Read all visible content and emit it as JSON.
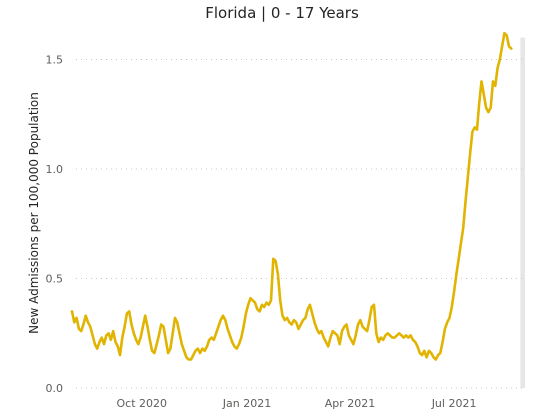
{
  "chart_data": {
    "type": "line",
    "title": "Florida | 0 - 17 Years",
    "xlabel": "",
    "ylabel": "New Admissions per 100,000 Population",
    "x_range": [
      "2020-08-01",
      "2021-09-01"
    ],
    "ylim": [
      0,
      1.6
    ],
    "y_ticks": [
      {
        "value": 0.0,
        "label": "0.0"
      },
      {
        "value": 0.5,
        "label": "0.5"
      },
      {
        "value": 1.0,
        "label": "1.0"
      },
      {
        "value": 1.5,
        "label": "1.5"
      }
    ],
    "x_ticks": [
      {
        "date": "2020-10-01",
        "label": "Oct 2020"
      },
      {
        "date": "2021-01-01",
        "label": "Jan 2021"
      },
      {
        "date": "2021-04-01",
        "label": "Apr 2021"
      },
      {
        "date": "2021-07-01",
        "label": "Jul 2021"
      }
    ],
    "grid": true,
    "line_color": "#e0b400",
    "shaded_period": {
      "start": "2021-08-28",
      "end": "2021-09-01",
      "color": "#e6e6e6"
    },
    "series": [
      {
        "points": [
          [
            "2020-08-01",
            0.35
          ],
          [
            "2020-08-03",
            0.3
          ],
          [
            "2020-08-05",
            0.32
          ],
          [
            "2020-08-07",
            0.27
          ],
          [
            "2020-08-09",
            0.26
          ],
          [
            "2020-08-11",
            0.29
          ],
          [
            "2020-08-13",
            0.33
          ],
          [
            "2020-08-15",
            0.3
          ],
          [
            "2020-08-17",
            0.28
          ],
          [
            "2020-08-19",
            0.24
          ],
          [
            "2020-08-21",
            0.2
          ],
          [
            "2020-08-23",
            0.18
          ],
          [
            "2020-08-25",
            0.21
          ],
          [
            "2020-08-27",
            0.23
          ],
          [
            "2020-08-29",
            0.2
          ],
          [
            "2020-08-31",
            0.24
          ],
          [
            "2020-09-02",
            0.25
          ],
          [
            "2020-09-04",
            0.22
          ],
          [
            "2020-09-06",
            0.26
          ],
          [
            "2020-09-08",
            0.21
          ],
          [
            "2020-09-10",
            0.19
          ],
          [
            "2020-09-12",
            0.15
          ],
          [
            "2020-09-14",
            0.23
          ],
          [
            "2020-09-16",
            0.28
          ],
          [
            "2020-09-18",
            0.34
          ],
          [
            "2020-09-20",
            0.35
          ],
          [
            "2020-09-22",
            0.29
          ],
          [
            "2020-09-24",
            0.25
          ],
          [
            "2020-09-26",
            0.22
          ],
          [
            "2020-09-28",
            0.2
          ],
          [
            "2020-09-30",
            0.23
          ],
          [
            "2020-10-02",
            0.28
          ],
          [
            "2020-10-04",
            0.33
          ],
          [
            "2020-10-06",
            0.28
          ],
          [
            "2020-10-08",
            0.22
          ],
          [
            "2020-10-10",
            0.17
          ],
          [
            "2020-10-12",
            0.16
          ],
          [
            "2020-10-14",
            0.2
          ],
          [
            "2020-10-16",
            0.24
          ],
          [
            "2020-10-18",
            0.29
          ],
          [
            "2020-10-20",
            0.28
          ],
          [
            "2020-10-22",
            0.22
          ],
          [
            "2020-10-24",
            0.16
          ],
          [
            "2020-10-26",
            0.18
          ],
          [
            "2020-10-28",
            0.25
          ],
          [
            "2020-10-30",
            0.32
          ],
          [
            "2020-11-01",
            0.3
          ],
          [
            "2020-11-03",
            0.25
          ],
          [
            "2020-11-05",
            0.2
          ],
          [
            "2020-11-07",
            0.17
          ],
          [
            "2020-11-09",
            0.14
          ],
          [
            "2020-11-11",
            0.13
          ],
          [
            "2020-11-13",
            0.13
          ],
          [
            "2020-11-15",
            0.15
          ],
          [
            "2020-11-17",
            0.17
          ],
          [
            "2020-11-19",
            0.18
          ],
          [
            "2020-11-21",
            0.16
          ],
          [
            "2020-11-23",
            0.18
          ],
          [
            "2020-11-25",
            0.17
          ],
          [
            "2020-11-27",
            0.19
          ],
          [
            "2020-11-29",
            0.22
          ],
          [
            "2020-12-01",
            0.23
          ],
          [
            "2020-12-03",
            0.22
          ],
          [
            "2020-12-05",
            0.25
          ],
          [
            "2020-12-07",
            0.28
          ],
          [
            "2020-12-09",
            0.31
          ],
          [
            "2020-12-11",
            0.33
          ],
          [
            "2020-12-13",
            0.31
          ],
          [
            "2020-12-15",
            0.27
          ],
          [
            "2020-12-17",
            0.24
          ],
          [
            "2020-12-19",
            0.21
          ],
          [
            "2020-12-21",
            0.19
          ],
          [
            "2020-12-23",
            0.18
          ],
          [
            "2020-12-25",
            0.2
          ],
          [
            "2020-12-27",
            0.23
          ],
          [
            "2020-12-29",
            0.28
          ],
          [
            "2020-12-31",
            0.34
          ],
          [
            "2021-01-02",
            0.38
          ],
          [
            "2021-01-04",
            0.41
          ],
          [
            "2021-01-06",
            0.4
          ],
          [
            "2021-01-08",
            0.39
          ],
          [
            "2021-01-10",
            0.36
          ],
          [
            "2021-01-12",
            0.35
          ],
          [
            "2021-01-14",
            0.38
          ],
          [
            "2021-01-16",
            0.37
          ],
          [
            "2021-01-18",
            0.39
          ],
          [
            "2021-01-20",
            0.38
          ],
          [
            "2021-01-22",
            0.4
          ],
          [
            "2021-01-24",
            0.59
          ],
          [
            "2021-01-26",
            0.58
          ],
          [
            "2021-01-28",
            0.52
          ],
          [
            "2021-01-30",
            0.4
          ],
          [
            "2021-02-01",
            0.33
          ],
          [
            "2021-02-03",
            0.31
          ],
          [
            "2021-02-05",
            0.32
          ],
          [
            "2021-02-07",
            0.3
          ],
          [
            "2021-02-09",
            0.29
          ],
          [
            "2021-02-11",
            0.31
          ],
          [
            "2021-02-13",
            0.3
          ],
          [
            "2021-02-15",
            0.27
          ],
          [
            "2021-02-17",
            0.29
          ],
          [
            "2021-02-19",
            0.31
          ],
          [
            "2021-02-21",
            0.32
          ],
          [
            "2021-02-23",
            0.36
          ],
          [
            "2021-02-25",
            0.38
          ],
          [
            "2021-02-27",
            0.34
          ],
          [
            "2021-03-01",
            0.3
          ],
          [
            "2021-03-03",
            0.27
          ],
          [
            "2021-03-05",
            0.25
          ],
          [
            "2021-03-07",
            0.26
          ],
          [
            "2021-03-09",
            0.23
          ],
          [
            "2021-03-11",
            0.21
          ],
          [
            "2021-03-13",
            0.19
          ],
          [
            "2021-03-15",
            0.23
          ],
          [
            "2021-03-17",
            0.26
          ],
          [
            "2021-03-19",
            0.25
          ],
          [
            "2021-03-21",
            0.24
          ],
          [
            "2021-03-23",
            0.2
          ],
          [
            "2021-03-25",
            0.26
          ],
          [
            "2021-03-27",
            0.28
          ],
          [
            "2021-03-29",
            0.29
          ],
          [
            "2021-03-31",
            0.24
          ],
          [
            "2021-04-02",
            0.22
          ],
          [
            "2021-04-04",
            0.2
          ],
          [
            "2021-04-06",
            0.24
          ],
          [
            "2021-04-08",
            0.29
          ],
          [
            "2021-04-10",
            0.31
          ],
          [
            "2021-04-12",
            0.28
          ],
          [
            "2021-04-14",
            0.27
          ],
          [
            "2021-04-16",
            0.26
          ],
          [
            "2021-04-18",
            0.31
          ],
          [
            "2021-04-20",
            0.37
          ],
          [
            "2021-04-22",
            0.38
          ],
          [
            "2021-04-24",
            0.25
          ],
          [
            "2021-04-26",
            0.21
          ],
          [
            "2021-04-28",
            0.23
          ],
          [
            "2021-04-30",
            0.22
          ],
          [
            "2021-05-02",
            0.24
          ],
          [
            "2021-05-04",
            0.25
          ],
          [
            "2021-05-06",
            0.24
          ],
          [
            "2021-05-08",
            0.23
          ],
          [
            "2021-05-10",
            0.23
          ],
          [
            "2021-05-12",
            0.24
          ],
          [
            "2021-05-14",
            0.25
          ],
          [
            "2021-05-16",
            0.24
          ],
          [
            "2021-05-18",
            0.23
          ],
          [
            "2021-05-20",
            0.24
          ],
          [
            "2021-05-22",
            0.23
          ],
          [
            "2021-05-24",
            0.24
          ],
          [
            "2021-05-26",
            0.22
          ],
          [
            "2021-05-28",
            0.21
          ],
          [
            "2021-05-30",
            0.19
          ],
          [
            "2021-06-01",
            0.16
          ],
          [
            "2021-06-03",
            0.15
          ],
          [
            "2021-06-05",
            0.17
          ],
          [
            "2021-06-07",
            0.14
          ],
          [
            "2021-06-09",
            0.17
          ],
          [
            "2021-06-11",
            0.16
          ],
          [
            "2021-06-13",
            0.14
          ],
          [
            "2021-06-15",
            0.13
          ],
          [
            "2021-06-17",
            0.15
          ],
          [
            "2021-06-19",
            0.16
          ],
          [
            "2021-06-21",
            0.21
          ],
          [
            "2021-06-23",
            0.27
          ],
          [
            "2021-06-25",
            0.3
          ],
          [
            "2021-06-27",
            0.32
          ],
          [
            "2021-06-29",
            0.37
          ],
          [
            "2021-07-01",
            0.44
          ],
          [
            "2021-07-03",
            0.52
          ],
          [
            "2021-07-05",
            0.59
          ],
          [
            "2021-07-07",
            0.66
          ],
          [
            "2021-07-09",
            0.73
          ],
          [
            "2021-07-11",
            0.85
          ],
          [
            "2021-07-13",
            0.96
          ],
          [
            "2021-07-15",
            1.07
          ],
          [
            "2021-07-17",
            1.17
          ],
          [
            "2021-07-19",
            1.19
          ],
          [
            "2021-07-21",
            1.18
          ],
          [
            "2021-07-23",
            1.3
          ],
          [
            "2021-07-25",
            1.4
          ],
          [
            "2021-07-27",
            1.34
          ],
          [
            "2021-07-29",
            1.28
          ],
          [
            "2021-07-31",
            1.26
          ],
          [
            "2021-08-02",
            1.28
          ],
          [
            "2021-08-04",
            1.4
          ],
          [
            "2021-08-06",
            1.38
          ],
          [
            "2021-08-08",
            1.46
          ],
          [
            "2021-08-10",
            1.5
          ],
          [
            "2021-08-12",
            1.56
          ],
          [
            "2021-08-14",
            1.62
          ],
          [
            "2021-08-16",
            1.61
          ],
          [
            "2021-08-18",
            1.56
          ],
          [
            "2021-08-20",
            1.55
          ]
        ]
      }
    ]
  }
}
